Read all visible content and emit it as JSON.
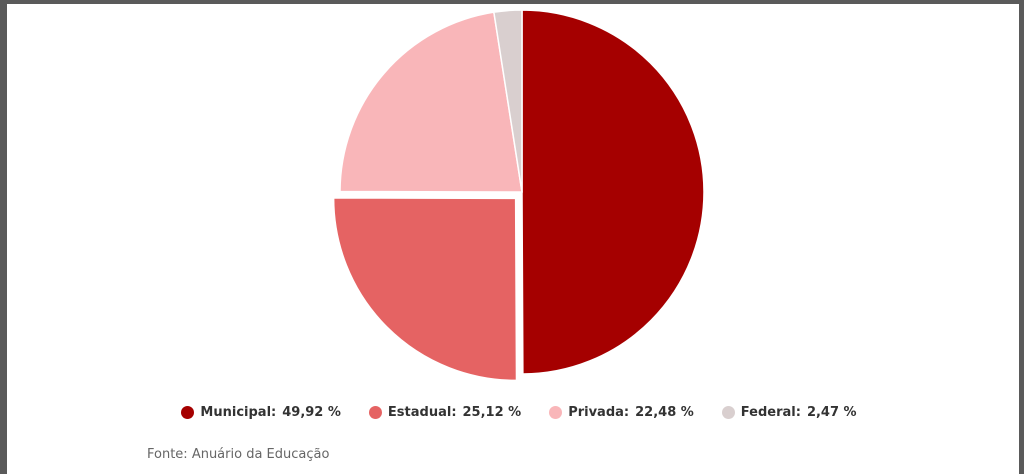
{
  "chart_data": {
    "type": "pie",
    "categories": [
      "Municipal",
      "Estadual",
      "Privada",
      "Federal"
    ],
    "values": [
      49.92,
      25.12,
      22.48,
      2.47
    ],
    "value_labels": [
      "49,92 %",
      "25,12 %",
      "22,48 %",
      "2,47 %"
    ],
    "colors": [
      "#a50000",
      "#e56363",
      "#f9b6b9",
      "#d9cfcf"
    ],
    "exploded": [
      false,
      true,
      false,
      false
    ],
    "source": "Fonte: Anuário da Educação"
  }
}
